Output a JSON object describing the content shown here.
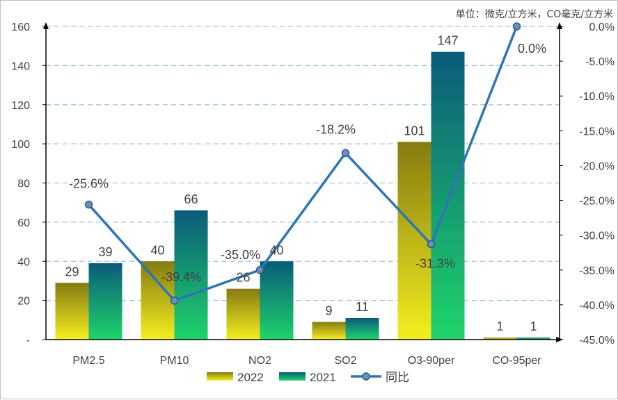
{
  "chart_data": {
    "type": "bar",
    "unit_label": "单位：微克/立方米，CO毫克/立方米",
    "categories": [
      "PM2.5",
      "PM10",
      "NO2",
      "SO2",
      "O3-90per",
      "CO-95per"
    ],
    "series": [
      {
        "name": "2022",
        "type": "bar",
        "axis": "left",
        "values": [
          29,
          40,
          26,
          9,
          101,
          1
        ],
        "labels": [
          "29",
          "40",
          "26",
          "9",
          "101",
          "1"
        ],
        "gradient": [
          "#f5ef1f",
          "#857b12"
        ]
      },
      {
        "name": "2021",
        "type": "bar",
        "axis": "left",
        "values": [
          39,
          66,
          40,
          11,
          147,
          1
        ],
        "labels": [
          "39",
          "66",
          "40",
          "11",
          "147",
          "1"
        ],
        "gradient": [
          "#1fd46a",
          "#0a5b7a"
        ]
      },
      {
        "name": "同比",
        "type": "line",
        "axis": "right",
        "values": [
          -25.6,
          -39.4,
          -35.0,
          -18.2,
          -31.3,
          0.0
        ],
        "labels": [
          "-25.6%",
          "-39.4%",
          "-35.0%",
          "-18.2%",
          "-31.3%",
          "0.0%"
        ],
        "color": "#2e75b6"
      }
    ],
    "y_left": {
      "ylim": [
        0,
        160
      ],
      "ticks": [
        "-",
        "20",
        "40",
        "60",
        "80",
        "100",
        "120",
        "140",
        "160"
      ]
    },
    "y_right": {
      "ylim": [
        -45,
        0
      ],
      "ticks": [
        "-45.0%",
        "-40.0%",
        "-35.0%",
        "-30.0%",
        "-25.0%",
        "-20.0%",
        "-15.0%",
        "-10.0%",
        "-5.0%",
        "0.0%"
      ]
    },
    "grid": "horizontal dashed",
    "legend": "bottom-center"
  }
}
